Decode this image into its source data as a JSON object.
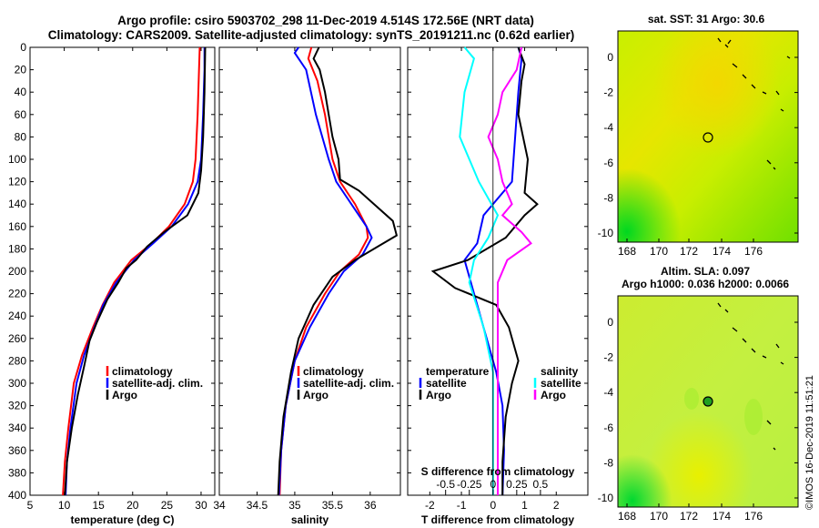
{
  "title_line1": "Argo profile: csiro 5903702_298 11-Dec-2019 4.514S 172.56E (NRT data)",
  "title_line2": "Climatology: CARS2009. Satellite-adjusted climatology: synTS_20191211.nc (0.62d earlier)",
  "colors": {
    "climatology": "#ff0000",
    "satellite": "#0000ff",
    "argo": "#000000",
    "s_diff_argo": "#ff00ff",
    "t_diff_sat": "#00e0ff",
    "s_diff_sat": "#00ffff"
  },
  "chart_data": [
    {
      "id": "temperature",
      "type": "line",
      "xlabel": "temperature (deg C)",
      "ylabel": "",
      "xlim": [
        5,
        32
      ],
      "ylim": [
        400,
        0
      ],
      "xticks": [
        5,
        10,
        15,
        20,
        25,
        30
      ],
      "yticks": [
        0,
        20,
        40,
        60,
        80,
        100,
        120,
        140,
        160,
        180,
        200,
        220,
        240,
        260,
        280,
        300,
        320,
        340,
        360,
        380,
        400
      ],
      "legend": [
        "climatology",
        "satellite-adj. clim.",
        "Argo"
      ],
      "series": [
        {
          "name": "climatology",
          "depth": [
            0,
            20,
            60,
            100,
            120,
            140,
            160,
            175,
            190,
            210,
            230,
            250,
            275,
            300,
            340,
            370,
            400
          ],
          "values": [
            29.8,
            29.7,
            29.5,
            29.2,
            28.8,
            27.6,
            25.3,
            22.8,
            19.8,
            17.3,
            15.6,
            14.2,
            12.6,
            11.4,
            10.6,
            10.1,
            9.8
          ]
        },
        {
          "name": "satellite-adj. clim.",
          "depth": [
            0,
            20,
            60,
            100,
            120,
            140,
            160,
            175,
            190,
            210,
            230,
            250,
            275,
            300,
            340,
            370,
            400
          ],
          "values": [
            30.5,
            30.5,
            30.3,
            30,
            29.5,
            28.1,
            25.7,
            23.0,
            20.2,
            17.6,
            15.7,
            14.4,
            12.9,
            11.8,
            10.9,
            10.4,
            10.2
          ]
        },
        {
          "name": "Argo",
          "depth": [
            0,
            40,
            80,
            110,
            130,
            150,
            165,
            178,
            190,
            197,
            210,
            225,
            245,
            262,
            285,
            310,
            340,
            370,
            400
          ],
          "values": [
            30.6,
            30.5,
            30.3,
            30.0,
            29.6,
            28.0,
            24.6,
            22.1,
            20.5,
            19.1,
            17.9,
            16.3,
            14.8,
            13.7,
            12.9,
            12.0,
            11.1,
            10.4,
            10.1
          ]
        }
      ]
    },
    {
      "id": "salinity",
      "type": "line",
      "xlabel": "salinity",
      "ylabel": "",
      "xlim": [
        34,
        36.4
      ],
      "ylim": [
        400,
        0
      ],
      "xticks": [
        34,
        34.5,
        35,
        35.5,
        36
      ],
      "xtick_labels": [
        "34",
        "34.5",
        "35",
        "35.5",
        "36"
      ],
      "legend": [
        "climatology",
        "satellite-adj. clim.",
        "Argo"
      ],
      "series": [
        {
          "name": "climatology",
          "depth": [
            0,
            10,
            30,
            60,
            100,
            120,
            140,
            160,
            170,
            185,
            200,
            220,
            250,
            280,
            320,
            360,
            400
          ],
          "values": [
            35.22,
            35.18,
            35.3,
            35.4,
            35.5,
            35.6,
            35.8,
            35.95,
            35.97,
            35.85,
            35.6,
            35.4,
            35.15,
            35.0,
            34.88,
            34.82,
            34.8
          ]
        },
        {
          "name": "satellite-adj. clim.",
          "depth": [
            0,
            5,
            20,
            60,
            100,
            120,
            140,
            160,
            170,
            185,
            200,
            220,
            250,
            280,
            320,
            360,
            400
          ],
          "values": [
            35.05,
            35.0,
            35.15,
            35.28,
            35.45,
            35.55,
            35.75,
            35.95,
            36.02,
            35.9,
            35.65,
            35.45,
            35.2,
            35.0,
            34.88,
            34.82,
            34.79
          ]
        },
        {
          "name": "Argo",
          "depth": [
            0,
            10,
            20,
            40,
            60,
            80,
            100,
            118,
            128,
            140,
            155,
            168,
            178,
            190,
            205,
            230,
            260,
            290,
            330,
            370,
            400
          ],
          "values": [
            35.32,
            35.25,
            35.33,
            35.4,
            35.45,
            35.5,
            35.58,
            35.6,
            35.85,
            36.05,
            36.3,
            36.35,
            36.1,
            35.8,
            35.5,
            35.25,
            35.05,
            34.95,
            34.85,
            34.8,
            34.78
          ]
        }
      ]
    },
    {
      "id": "difference",
      "type": "line",
      "xlabel": "T difference from climatology",
      "xlabel_top": "S difference from climatology",
      "xlim": [
        -2.7,
        3
      ],
      "ylim": [
        400,
        0
      ],
      "xticks": [
        -2,
        -1,
        0,
        1,
        2
      ],
      "s_xticks": [
        -0.5,
        -0.25,
        0,
        0.25,
        0.5
      ],
      "s_xtick_labels": [
        "-0.5",
        "-0.25",
        "0",
        "0.25",
        "0.5"
      ],
      "legend_left_title": "temperature",
      "legend_right_title": "salinity",
      "legend_left": [
        "satellite",
        "Argo"
      ],
      "legend_right": [
        "satellite",
        "Argo"
      ],
      "series": [
        {
          "name": "T satellite",
          "depth": [
            0,
            10,
            40,
            80,
            120,
            150,
            175,
            190,
            200,
            230,
            260,
            290,
            320,
            360,
            400
          ],
          "values": [
            0.8,
            0.9,
            0.8,
            0.7,
            0.6,
            -0.3,
            -0.5,
            -0.9,
            -0.8,
            -0.5,
            -0.2,
            0.1,
            0.3,
            0.35,
            0.3
          ]
        },
        {
          "name": "T Argo",
          "depth": [
            0,
            15,
            30,
            60,
            100,
            130,
            140,
            150,
            170,
            190,
            200,
            215,
            230,
            250,
            280,
            300,
            330,
            370,
            400
          ],
          "values": [
            0.8,
            1.0,
            0.9,
            0.8,
            1.1,
            1.0,
            1.4,
            1.0,
            0.4,
            -0.8,
            -1.9,
            -1.2,
            0.1,
            0.5,
            0.8,
            0.6,
            0.4,
            0.3,
            0.3
          ]
        },
        {
          "name": "S satellite",
          "depth": [
            0,
            10,
            40,
            80,
            120,
            150,
            170,
            190,
            210,
            250,
            290,
            330,
            370,
            400
          ],
          "values": [
            -0.3,
            -0.2,
            -0.3,
            -0.35,
            -0.15,
            0.05,
            -0.05,
            -0.2,
            -0.25,
            -0.1,
            0.0,
            0.0,
            0.0,
            0.0
          ]
        },
        {
          "name": "S Argo",
          "depth": [
            0,
            20,
            40,
            60,
            80,
            100,
            120,
            140,
            150,
            165,
            175,
            190,
            210,
            240,
            280,
            320,
            360,
            400
          ],
          "values": [
            0.3,
            0.25,
            0.1,
            0.05,
            -0.05,
            0.05,
            0.1,
            0.2,
            0.1,
            0.3,
            0.4,
            0.15,
            0.05,
            0.05,
            0.05,
            0.05,
            0.05,
            0.05
          ]
        }
      ]
    }
  ],
  "maps": {
    "sst": {
      "title": "sat. SST: 31 Argo: 30.6",
      "xticks": [
        "168",
        "170",
        "172",
        "174",
        "176"
      ],
      "yticks": [
        "0",
        "-2",
        "-4",
        "-6",
        "-8",
        "-10"
      ]
    },
    "sla": {
      "title_line1": "Altim. SLA: 0.097",
      "title_line2": "Argo h1000: 0.036 h2000: 0.0066",
      "xticks": [
        "168",
        "170",
        "172",
        "174",
        "176"
      ],
      "yticks": [
        "0",
        "-2",
        "-4",
        "-6",
        "-8",
        "-10"
      ]
    }
  },
  "credit": "©IMOS 16-Dec-2019 11:51:21"
}
